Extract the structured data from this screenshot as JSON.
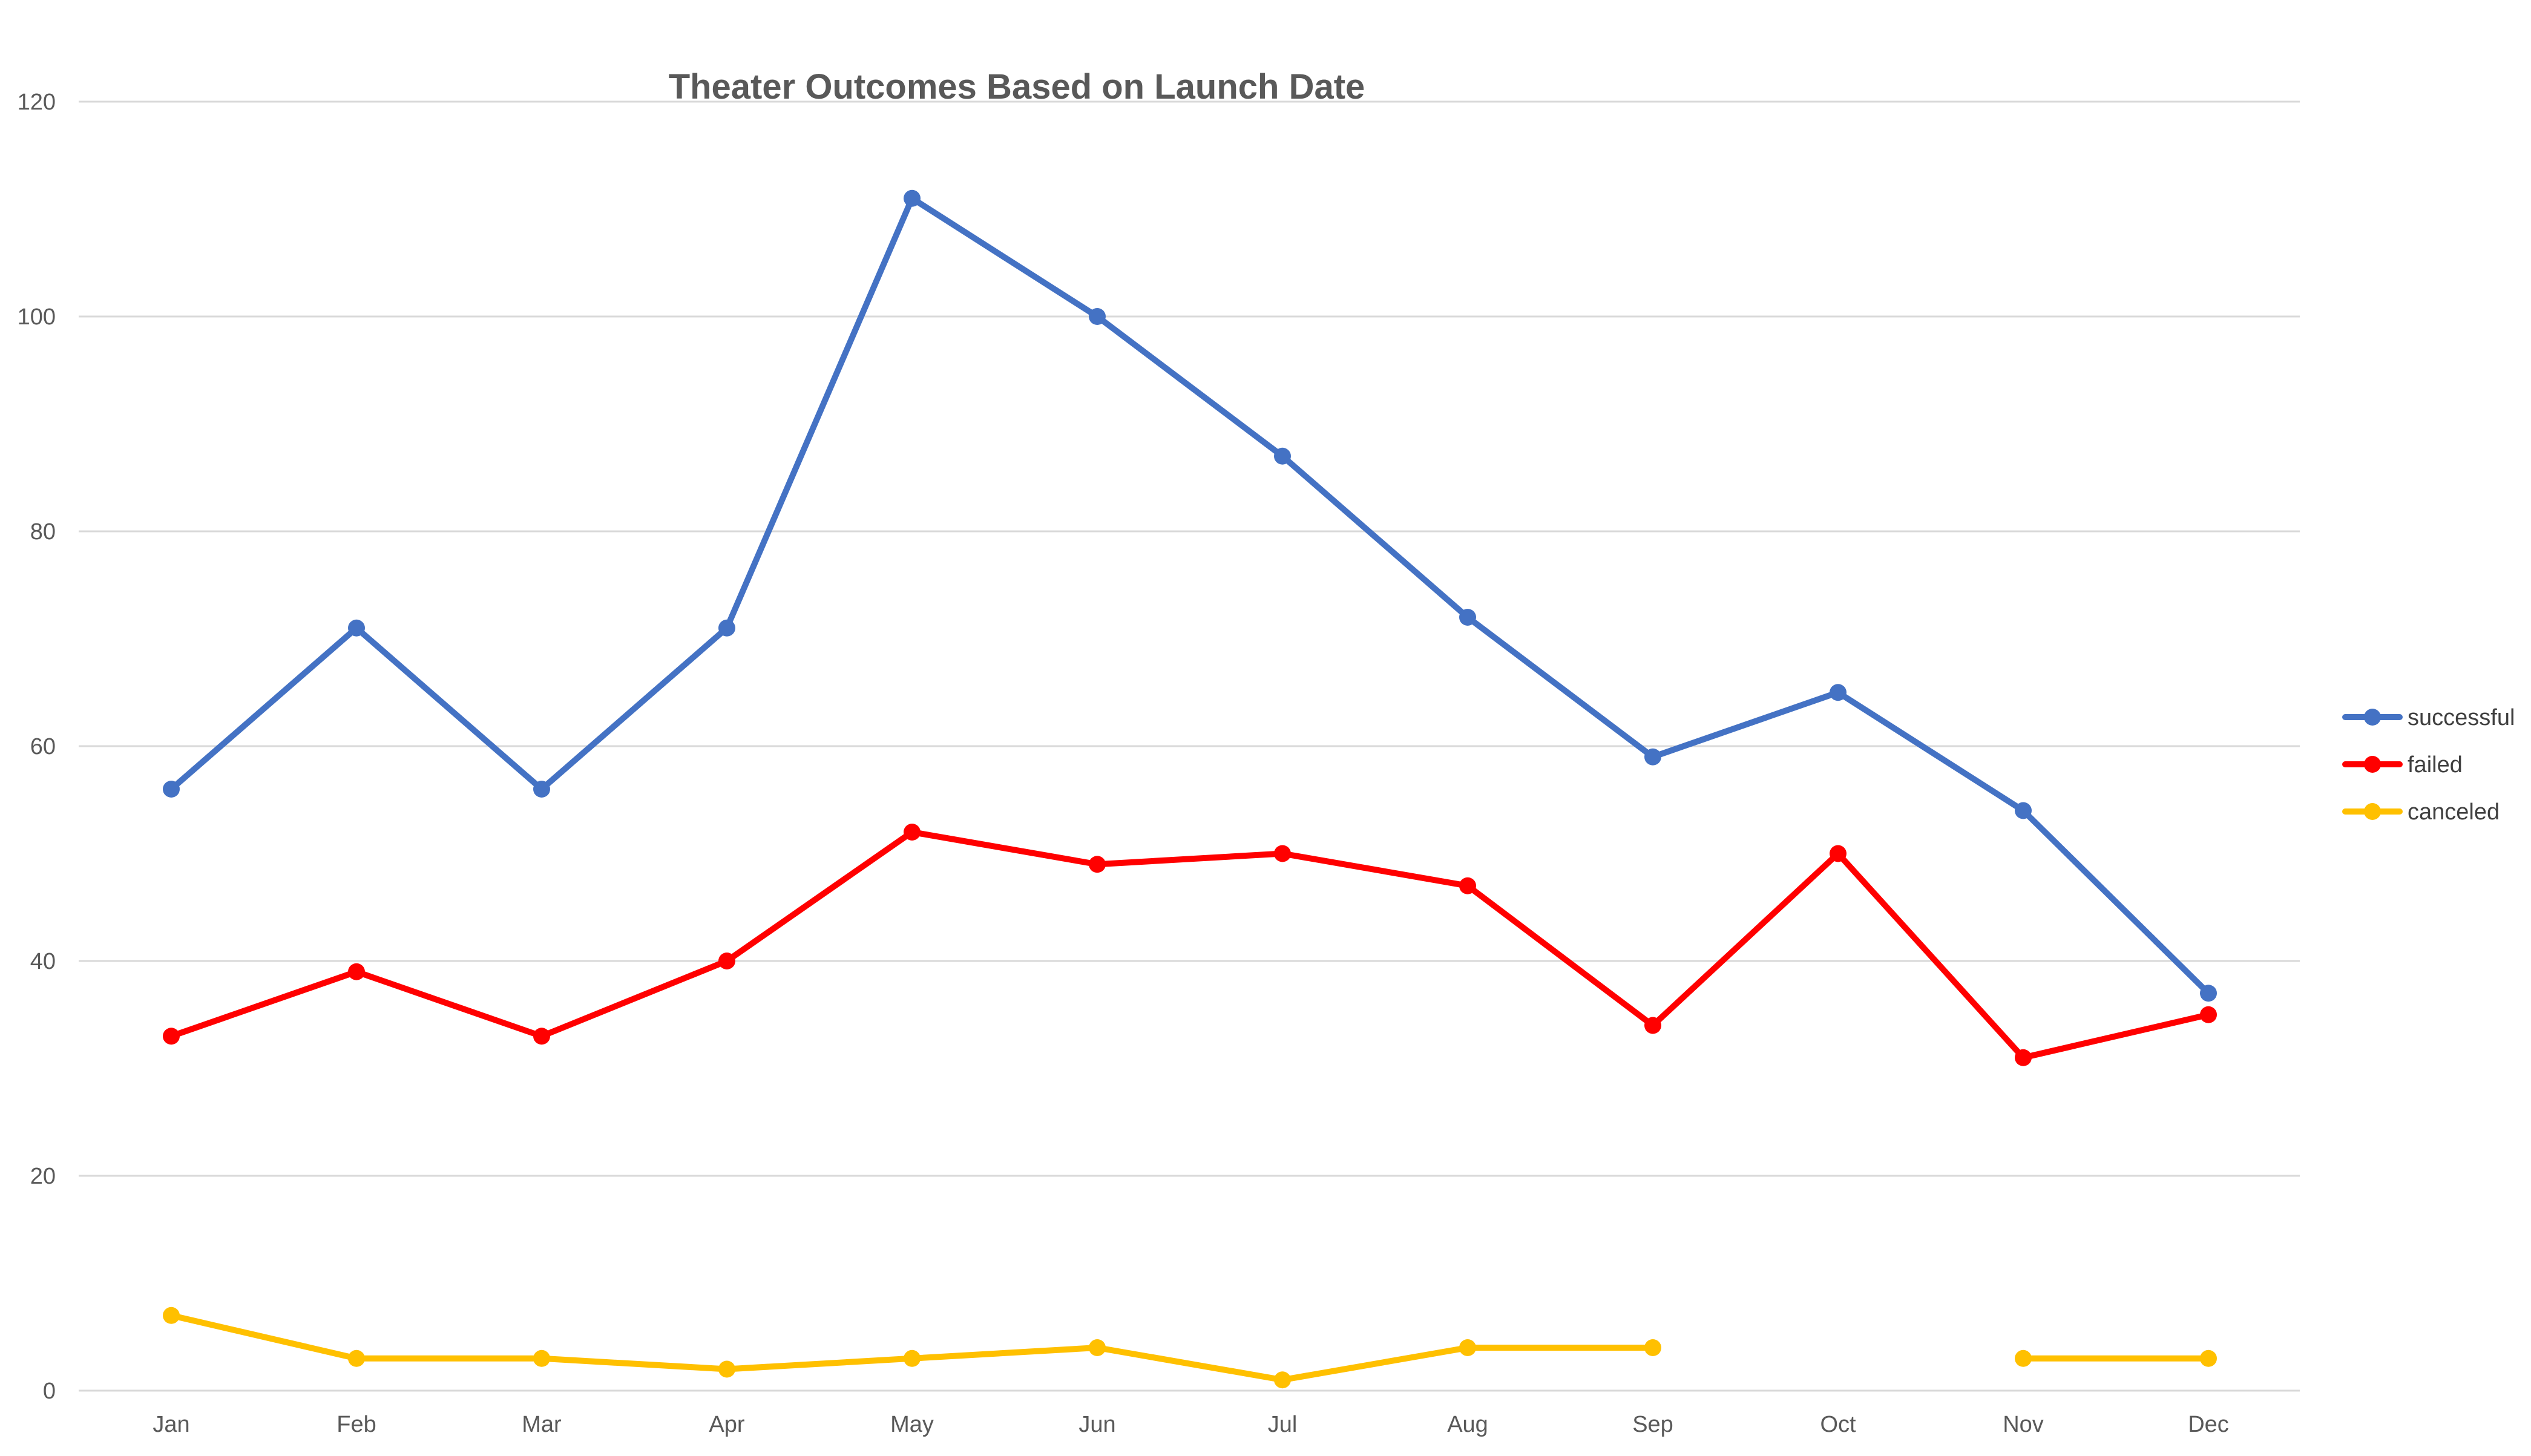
{
  "chart_data": {
    "type": "line",
    "title": "Theater Outcomes Based on Launch Date",
    "xlabel": "",
    "ylabel": "",
    "categories": [
      "Jan",
      "Feb",
      "Mar",
      "Apr",
      "May",
      "Jun",
      "Jul",
      "Aug",
      "Sep",
      "Oct",
      "Nov",
      "Dec"
    ],
    "ylim": [
      0,
      120
    ],
    "yticks": [
      0,
      20,
      40,
      60,
      80,
      100,
      120
    ],
    "grid": true,
    "legend_position": "right",
    "series": [
      {
        "name": "successful",
        "color": "#4472c4",
        "values": [
          56,
          71,
          56,
          71,
          111,
          100,
          87,
          72,
          59,
          65,
          54,
          37
        ]
      },
      {
        "name": "failed",
        "color": "#ff0000",
        "values": [
          33,
          39,
          33,
          40,
          52,
          49,
          50,
          47,
          34,
          50,
          31,
          35
        ]
      },
      {
        "name": "canceled",
        "color": "#ffc000",
        "values": [
          7,
          3,
          3,
          2,
          3,
          4,
          1,
          4,
          4,
          null,
          3,
          3
        ]
      }
    ]
  }
}
